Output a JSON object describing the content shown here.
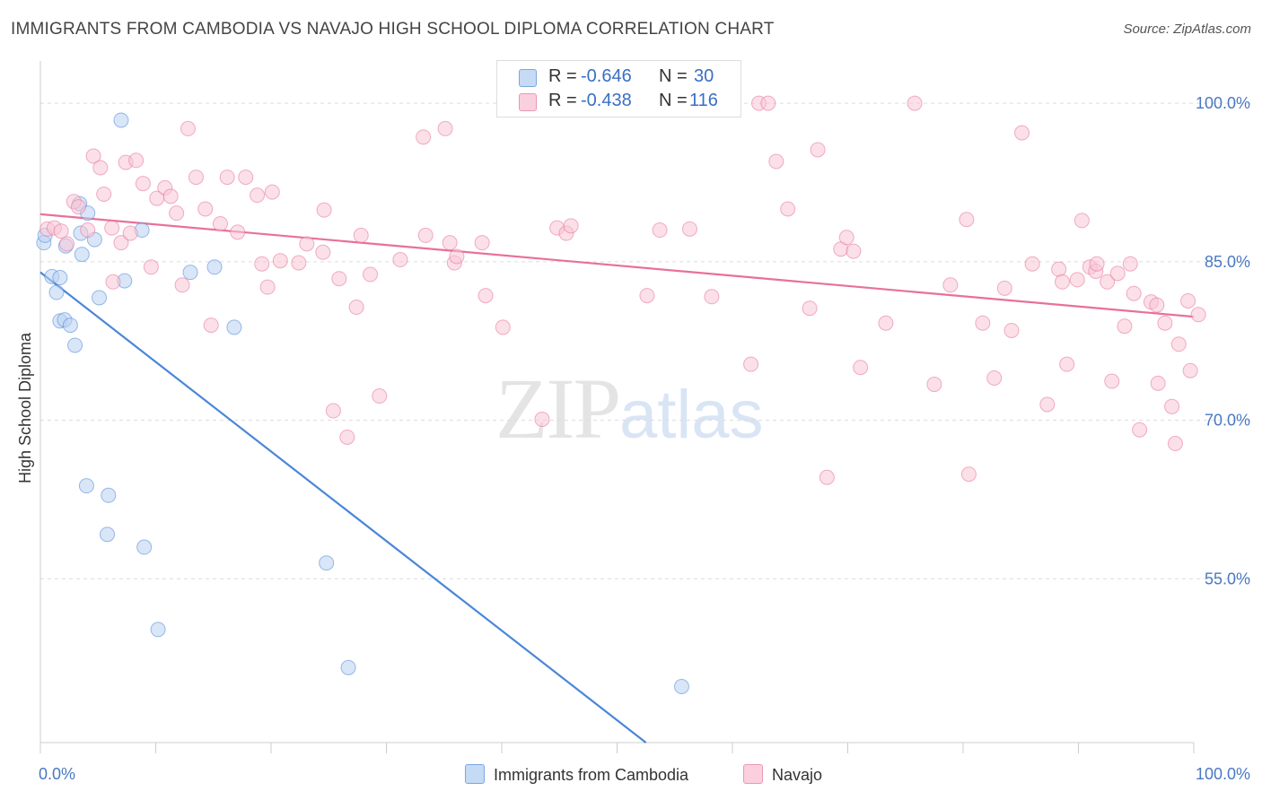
{
  "title": "IMMIGRANTS FROM CAMBODIA VS NAVAJO HIGH SCHOOL DIPLOMA CORRELATION CHART",
  "source": "Source: ZipAtlas.com",
  "watermark": {
    "zip": "ZIP",
    "atlas": "atlas"
  },
  "legend": {
    "rows": [
      {
        "r_label": "R =",
        "r_value": "-0.646",
        "n_label": "N =",
        "n_value": "30",
        "color": "#a9c8f0"
      },
      {
        "r_label": "R =",
        "r_value": "-0.438",
        "n_label": "N =",
        "n_value": "116",
        "color": "#f6b8cc"
      }
    ]
  },
  "bottom_legend": [
    {
      "label": "Immigrants from Cambodia",
      "color": "#a9c8f0"
    },
    {
      "label": "Navajo",
      "color": "#f6b8cc"
    }
  ],
  "chart_data": {
    "type": "scatter",
    "xlabel": "",
    "ylabel": "High School Diploma",
    "xlim": [
      0,
      100
    ],
    "ylim": [
      39.5,
      104
    ],
    "x_tick_labels": [
      {
        "value": 0,
        "label": "0.0%"
      },
      {
        "value": 100,
        "label": "100.0%"
      }
    ],
    "y_tick_labels": [
      {
        "value": 100,
        "label": "100.0%"
      },
      {
        "value": 85,
        "label": "85.0%"
      },
      {
        "value": 70,
        "label": "70.0%"
      },
      {
        "value": 55,
        "label": "55.0%"
      }
    ],
    "grid": true,
    "series": [
      {
        "name": "Immigrants from Cambodia",
        "color": "#4a86d8",
        "fill": "#b9d2f3",
        "trend": {
          "x0": 0,
          "y0": 84.0,
          "x1": 52.5,
          "y1": 39.5
        },
        "points": [
          [
            0.3,
            86.8
          ],
          [
            0.4,
            87.5
          ],
          [
            1.0,
            83.6
          ],
          [
            1.4,
            82.1
          ],
          [
            1.7,
            83.5
          ],
          [
            1.7,
            79.4
          ],
          [
            2.1,
            79.5
          ],
          [
            2.6,
            79.0
          ],
          [
            3.0,
            77.1
          ],
          [
            3.6,
            85.7
          ],
          [
            3.4,
            90.5
          ],
          [
            3.5,
            87.7
          ],
          [
            4.1,
            89.6
          ],
          [
            4.7,
            87.1
          ],
          [
            5.1,
            81.6
          ],
          [
            7.0,
            98.4
          ],
          [
            7.3,
            83.2
          ],
          [
            8.8,
            88.0
          ],
          [
            13.0,
            84.0
          ],
          [
            15.1,
            84.5
          ],
          [
            16.8,
            78.8
          ],
          [
            4.0,
            63.8
          ],
          [
            5.9,
            62.9
          ],
          [
            5.8,
            59.2
          ],
          [
            9.0,
            58.0
          ],
          [
            10.2,
            50.2
          ],
          [
            24.8,
            56.5
          ],
          [
            26.7,
            46.6
          ],
          [
            55.6,
            44.8
          ],
          [
            2.2,
            86.5
          ]
        ]
      },
      {
        "name": "Navajo",
        "color": "#e8709a",
        "fill": "#f8c6d6",
        "trend": {
          "x0": 0,
          "y0": 89.5,
          "x1": 100,
          "y1": 79.8
        },
        "points": [
          [
            0.6,
            88.1
          ],
          [
            1.2,
            88.2
          ],
          [
            2.3,
            86.7
          ],
          [
            1.8,
            87.9
          ],
          [
            2.9,
            90.7
          ],
          [
            3.3,
            90.2
          ],
          [
            4.1,
            88.0
          ],
          [
            4.6,
            95.0
          ],
          [
            5.2,
            93.9
          ],
          [
            5.5,
            91.4
          ],
          [
            6.2,
            88.2
          ],
          [
            6.3,
            83.1
          ],
          [
            7.0,
            86.8
          ],
          [
            7.4,
            94.4
          ],
          [
            7.8,
            87.7
          ],
          [
            8.3,
            94.6
          ],
          [
            8.9,
            92.4
          ],
          [
            9.6,
            84.5
          ],
          [
            10.1,
            91.0
          ],
          [
            10.8,
            92.0
          ],
          [
            11.3,
            91.2
          ],
          [
            11.8,
            89.6
          ],
          [
            12.3,
            82.8
          ],
          [
            12.8,
            97.6
          ],
          [
            13.5,
            93.0
          ],
          [
            14.3,
            90.0
          ],
          [
            14.8,
            79.0
          ],
          [
            15.6,
            88.6
          ],
          [
            16.2,
            93.0
          ],
          [
            17.1,
            87.8
          ],
          [
            17.8,
            93.0
          ],
          [
            18.8,
            91.3
          ],
          [
            19.2,
            84.8
          ],
          [
            19.7,
            82.6
          ],
          [
            20.1,
            91.6
          ],
          [
            20.8,
            85.1
          ],
          [
            22.4,
            84.9
          ],
          [
            23.1,
            86.7
          ],
          [
            24.5,
            85.9
          ],
          [
            24.6,
            89.9
          ],
          [
            25.4,
            70.9
          ],
          [
            25.9,
            83.4
          ],
          [
            26.6,
            68.4
          ],
          [
            27.4,
            80.7
          ],
          [
            27.8,
            87.5
          ],
          [
            28.6,
            83.8
          ],
          [
            29.4,
            72.3
          ],
          [
            31.2,
            85.2
          ],
          [
            33.2,
            96.8
          ],
          [
            33.4,
            87.5
          ],
          [
            35.1,
            97.6
          ],
          [
            35.5,
            86.8
          ],
          [
            35.9,
            84.9
          ],
          [
            36.1,
            85.5
          ],
          [
            38.3,
            86.8
          ],
          [
            38.6,
            81.8
          ],
          [
            40.1,
            78.8
          ],
          [
            43.5,
            70.1
          ],
          [
            44.8,
            88.2
          ],
          [
            45.6,
            87.7
          ],
          [
            46.0,
            88.4
          ],
          [
            52.2,
            100.0
          ],
          [
            52.6,
            81.8
          ],
          [
            53.7,
            88.0
          ],
          [
            56.3,
            88.1
          ],
          [
            58.2,
            81.7
          ],
          [
            61.6,
            75.3
          ],
          [
            62.3,
            100.0
          ],
          [
            63.1,
            100.0
          ],
          [
            63.8,
            94.5
          ],
          [
            64.8,
            90.0
          ],
          [
            66.7,
            80.6
          ],
          [
            67.4,
            95.6
          ],
          [
            68.2,
            64.6
          ],
          [
            69.4,
            86.2
          ],
          [
            69.9,
            87.3
          ],
          [
            70.5,
            86.0
          ],
          [
            71.1,
            75.0
          ],
          [
            73.3,
            79.2
          ],
          [
            75.8,
            100.0
          ],
          [
            77.5,
            73.4
          ],
          [
            78.9,
            82.8
          ],
          [
            80.3,
            89.0
          ],
          [
            80.5,
            64.9
          ],
          [
            81.7,
            79.2
          ],
          [
            82.7,
            74.0
          ],
          [
            83.6,
            82.5
          ],
          [
            84.2,
            78.5
          ],
          [
            85.1,
            97.2
          ],
          [
            86.0,
            84.8
          ],
          [
            87.3,
            71.5
          ],
          [
            88.3,
            84.3
          ],
          [
            88.6,
            83.1
          ],
          [
            89.0,
            75.3
          ],
          [
            89.9,
            83.3
          ],
          [
            90.3,
            88.9
          ],
          [
            91.0,
            84.5
          ],
          [
            91.5,
            84.1
          ],
          [
            91.6,
            84.8
          ],
          [
            92.5,
            83.1
          ],
          [
            92.9,
            73.7
          ],
          [
            93.4,
            83.9
          ],
          [
            94.0,
            78.9
          ],
          [
            94.5,
            84.8
          ],
          [
            94.8,
            82.0
          ],
          [
            95.3,
            69.1
          ],
          [
            96.3,
            81.2
          ],
          [
            96.8,
            80.9
          ],
          [
            96.9,
            73.5
          ],
          [
            97.5,
            79.2
          ],
          [
            98.1,
            71.3
          ],
          [
            98.4,
            67.8
          ],
          [
            98.7,
            77.2
          ],
          [
            99.5,
            81.3
          ],
          [
            99.7,
            74.7
          ],
          [
            100.4,
            80.0
          ]
        ]
      }
    ]
  }
}
